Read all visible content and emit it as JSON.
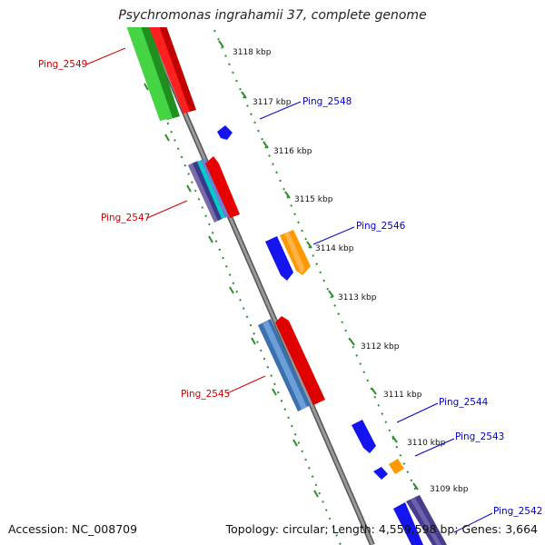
{
  "header": {
    "title": "Psychromonas ingrahamii 37, complete genome"
  },
  "footer": {
    "accession": "Accession: NC_008709",
    "summary": "Topology: circular; Length: 4,559,598 bp; Genes: 3,664"
  },
  "colors": {
    "red": "#ff0000",
    "green": "#33cc33",
    "blue": "#1414ee",
    "orange": "#ff9900",
    "steel_blue": "#4a86c8",
    "dark_slate": "#483d8b",
    "cyan": "#00cccc",
    "backbone": "#888888",
    "tick_green": "#2e8b2e",
    "label_red": "#cc0000",
    "label_blue": "#0000cc"
  },
  "kbp_labels": [
    "3118 kbp",
    "3117 kbp",
    "3116 kbp",
    "3115 kbp",
    "3114 kbp",
    "3113 kbp",
    "3112 kbp",
    "3111 kbp",
    "3110 kbp",
    "3109 kbp"
  ],
  "gene_labels": [
    {
      "text": "Ping_2549",
      "side": "left"
    },
    {
      "text": "Ping_2548",
      "side": "right"
    },
    {
      "text": "Ping_2547",
      "side": "left"
    },
    {
      "text": "Ping_2546",
      "side": "right"
    },
    {
      "text": "Ping_2545",
      "side": "left"
    },
    {
      "text": "Ping_2544",
      "side": "right"
    },
    {
      "text": "Ping_2543",
      "side": "right"
    },
    {
      "text": "Ping_2542",
      "side": "right"
    }
  ]
}
